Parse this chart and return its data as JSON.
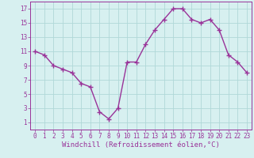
{
  "x": [
    0,
    1,
    2,
    3,
    4,
    5,
    6,
    7,
    8,
    9,
    10,
    11,
    12,
    13,
    14,
    15,
    16,
    17,
    18,
    19,
    20,
    21,
    22,
    23
  ],
  "y": [
    11,
    10.5,
    9,
    8.5,
    8,
    6.5,
    6,
    2.5,
    1.5,
    3,
    9.5,
    9.5,
    12,
    14,
    15.5,
    17,
    17,
    15.5,
    15,
    15.5,
    14,
    10.5,
    9.5,
    8
  ],
  "line_color": "#993399",
  "marker": "+",
  "marker_size": 4,
  "linewidth": 1.0,
  "bg_color": "#d7f0f0",
  "grid_color": "#b0d8d8",
  "xlabel": "Windchill (Refroidissement éolien,°C)",
  "xlim": [
    -0.5,
    23.5
  ],
  "ylim": [
    0,
    18
  ],
  "yticks": [
    1,
    3,
    5,
    7,
    9,
    11,
    13,
    15,
    17
  ],
  "xticks": [
    0,
    1,
    2,
    3,
    4,
    5,
    6,
    7,
    8,
    9,
    10,
    11,
    12,
    13,
    14,
    15,
    16,
    17,
    18,
    19,
    20,
    21,
    22,
    23
  ],
  "xlabel_fontsize": 6.5,
  "tick_fontsize": 5.5,
  "tick_color": "#993399",
  "axis_color": "#993399"
}
